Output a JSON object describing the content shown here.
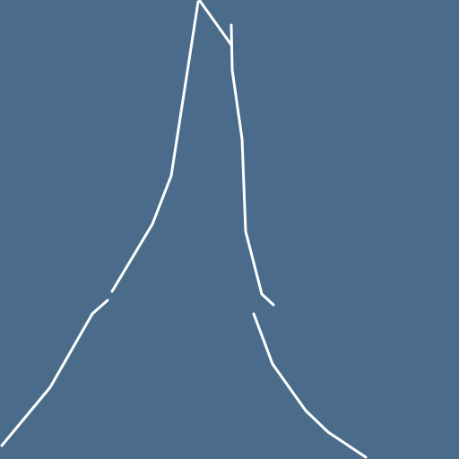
{
  "colors": {
    "background": "#4a6c8a",
    "line": "#ffffff"
  }
}
